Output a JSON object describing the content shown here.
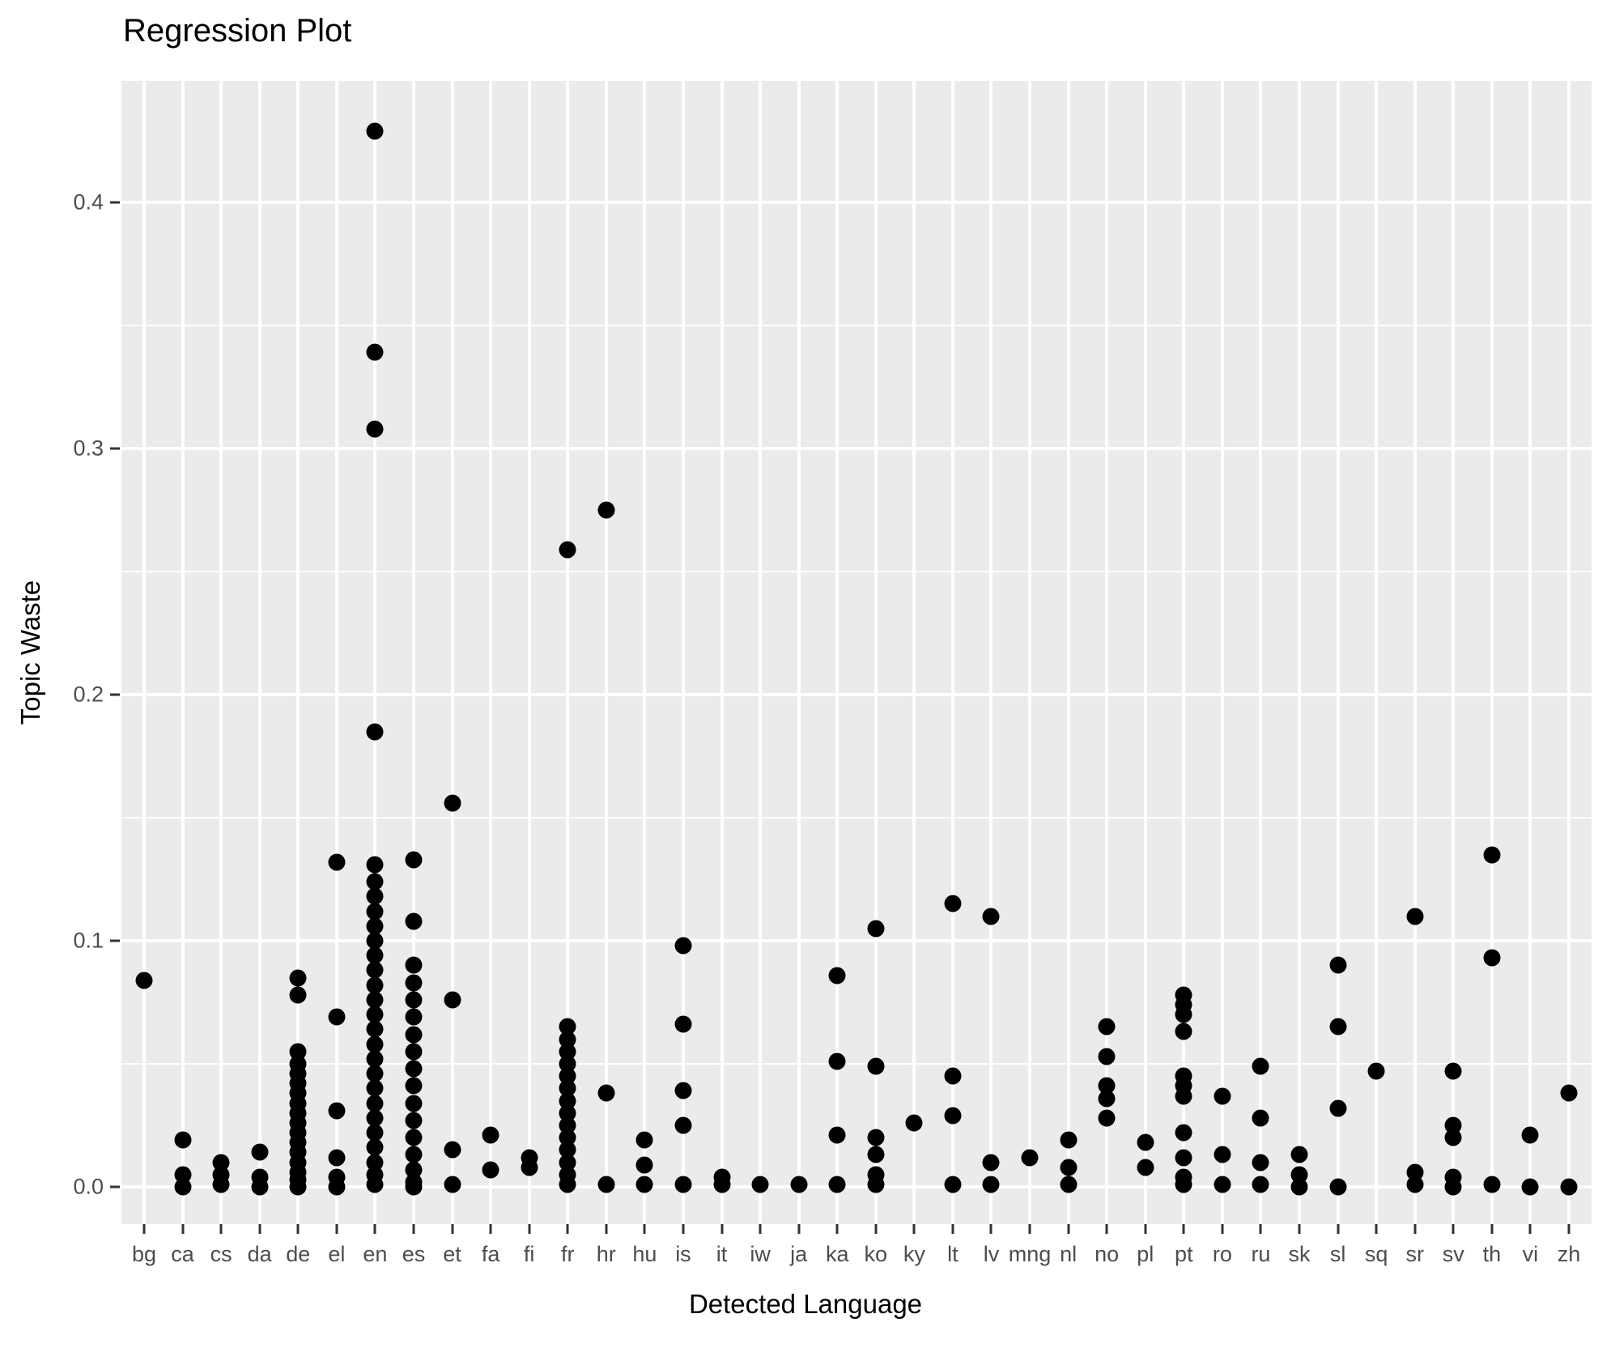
{
  "title": "Regression Plot",
  "chart_data": {
    "type": "scatter",
    "title": "Regression Plot",
    "xlabel": "Detected Language",
    "ylabel": "Topic Waste",
    "ylim": [
      0,
      0.449
    ],
    "grid": "on",
    "legend": "none",
    "panel_bg": "#EBEBEB",
    "grid_color": "#FFFFFF",
    "point_color": "#000000",
    "axis_text_color": "#4D4D4D",
    "y_ticks": [
      {
        "value": 0.0,
        "label": "0.0"
      },
      {
        "value": 0.1,
        "label": "0.1"
      },
      {
        "value": 0.2,
        "label": "0.2"
      },
      {
        "value": 0.3,
        "label": "0.3"
      },
      {
        "value": 0.4,
        "label": "0.4"
      }
    ],
    "y_minor_ticks": [
      0.05,
      0.15,
      0.25,
      0.35,
      0.45
    ],
    "categories": [
      "bg",
      "ca",
      "cs",
      "da",
      "de",
      "el",
      "en",
      "es",
      "et",
      "fa",
      "fi",
      "fr",
      "hr",
      "hu",
      "is",
      "it",
      "iw",
      "ja",
      "ka",
      "ko",
      "ky",
      "lt",
      "lv",
      "mng",
      "nl",
      "no",
      "pl",
      "pt",
      "ro",
      "ru",
      "sk",
      "sl",
      "sq",
      "sr",
      "sv",
      "th",
      "vi",
      "zh"
    ],
    "series": [
      {
        "lang": "bg",
        "values": [
          0.084
        ]
      },
      {
        "lang": "ca",
        "values": [
          0.019,
          0.005,
          0.0
        ]
      },
      {
        "lang": "cs",
        "values": [
          0.01,
          0.005,
          0.001
        ]
      },
      {
        "lang": "da",
        "values": [
          0.014,
          0.004,
          0.0
        ]
      },
      {
        "lang": "de",
        "values": [
          0.085,
          0.078,
          0.055,
          0.05,
          0.046,
          0.042,
          0.038,
          0.034,
          0.03,
          0.026,
          0.022,
          0.018,
          0.014,
          0.01,
          0.006,
          0.003,
          0.0
        ]
      },
      {
        "lang": "el",
        "values": [
          0.132,
          0.069,
          0.031,
          0.012,
          0.004,
          0.0
        ]
      },
      {
        "lang": "en",
        "values": [
          0.429,
          0.339,
          0.308,
          0.185,
          0.131,
          0.124,
          0.118,
          0.112,
          0.106,
          0.1,
          0.094,
          0.088,
          0.082,
          0.076,
          0.07,
          0.064,
          0.058,
          0.052,
          0.046,
          0.04,
          0.034,
          0.028,
          0.022,
          0.016,
          0.01,
          0.005,
          0.001
        ]
      },
      {
        "lang": "es",
        "values": [
          0.133,
          0.108,
          0.09,
          0.083,
          0.076,
          0.069,
          0.062,
          0.055,
          0.048,
          0.041,
          0.034,
          0.027,
          0.02,
          0.013,
          0.007,
          0.002,
          0.0
        ]
      },
      {
        "lang": "et",
        "values": [
          0.156,
          0.076,
          0.015,
          0.001
        ]
      },
      {
        "lang": "fa",
        "values": [
          0.021,
          0.007
        ]
      },
      {
        "lang": "fi",
        "values": [
          0.012,
          0.008
        ]
      },
      {
        "lang": "fr",
        "values": [
          0.259,
          0.065,
          0.06,
          0.055,
          0.05,
          0.045,
          0.04,
          0.035,
          0.03,
          0.025,
          0.02,
          0.015,
          0.01,
          0.005,
          0.001
        ]
      },
      {
        "lang": "hr",
        "values": [
          0.275,
          0.038,
          0.001
        ]
      },
      {
        "lang": "hu",
        "values": [
          0.019,
          0.009,
          0.001
        ]
      },
      {
        "lang": "is",
        "values": [
          0.098,
          0.066,
          0.039,
          0.025,
          0.001
        ]
      },
      {
        "lang": "it",
        "values": [
          0.004,
          0.001
        ]
      },
      {
        "lang": "iw",
        "values": [
          0.001
        ]
      },
      {
        "lang": "ja",
        "values": [
          0.001
        ]
      },
      {
        "lang": "ka",
        "values": [
          0.086,
          0.051,
          0.021,
          0.001
        ]
      },
      {
        "lang": "ko",
        "values": [
          0.105,
          0.049,
          0.02,
          0.013,
          0.005,
          0.001
        ]
      },
      {
        "lang": "ky",
        "values": [
          0.026
        ]
      },
      {
        "lang": "lt",
        "values": [
          0.115,
          0.045,
          0.029,
          0.001
        ]
      },
      {
        "lang": "lv",
        "values": [
          0.11,
          0.01,
          0.001
        ]
      },
      {
        "lang": "mng",
        "values": [
          0.012
        ]
      },
      {
        "lang": "nl",
        "values": [
          0.019,
          0.008,
          0.001
        ]
      },
      {
        "lang": "no",
        "values": [
          0.065,
          0.053,
          0.041,
          0.036,
          0.028
        ]
      },
      {
        "lang": "pl",
        "values": [
          0.018,
          0.008
        ]
      },
      {
        "lang": "pt",
        "values": [
          0.078,
          0.074,
          0.07,
          0.063,
          0.045,
          0.041,
          0.037,
          0.022,
          0.012,
          0.004,
          0.001
        ]
      },
      {
        "lang": "ro",
        "values": [
          0.037,
          0.013,
          0.001
        ]
      },
      {
        "lang": "ru",
        "values": [
          0.049,
          0.028,
          0.01,
          0.001
        ]
      },
      {
        "lang": "sk",
        "values": [
          0.013,
          0.005,
          0.0
        ]
      },
      {
        "lang": "sl",
        "values": [
          0.09,
          0.065,
          0.032,
          0.0
        ]
      },
      {
        "lang": "sq",
        "values": [
          0.047
        ]
      },
      {
        "lang": "sr",
        "values": [
          0.11,
          0.006,
          0.001
        ]
      },
      {
        "lang": "sv",
        "values": [
          0.047,
          0.025,
          0.02,
          0.004,
          0.0
        ]
      },
      {
        "lang": "th",
        "values": [
          0.135,
          0.093,
          0.001
        ]
      },
      {
        "lang": "vi",
        "values": [
          0.021,
          0.0
        ]
      },
      {
        "lang": "zh",
        "values": [
          0.038,
          0.0
        ]
      }
    ]
  }
}
